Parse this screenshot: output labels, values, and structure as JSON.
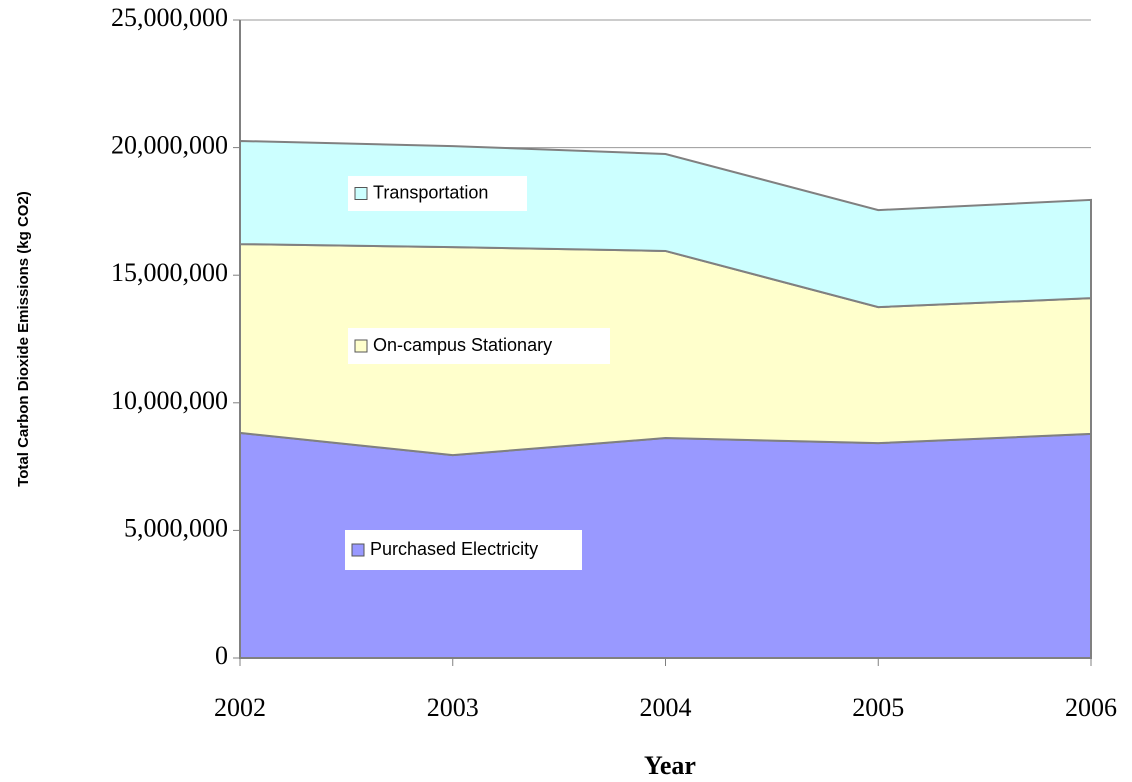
{
  "chart_data": {
    "type": "area",
    "stacked": true,
    "x_label": "Year",
    "y_label": "Total Carbon Dioxide Emissions (kg CO2)",
    "x": [
      2002,
      2003,
      2004,
      2005,
      2006
    ],
    "xlim": [
      2002,
      2006
    ],
    "xticks": [
      2002,
      2003,
      2004,
      2005,
      2006
    ],
    "ylim": [
      0,
      25000000
    ],
    "yticks": [
      0,
      {
        "value": 5000000,
        "label": "5,000,000"
      },
      {
        "value": 10000000,
        "label": "10,000,000"
      },
      {
        "value": 15000000,
        "label": "15,000,000"
      },
      {
        "value": 20000000,
        "label": "20,000,000"
      },
      {
        "value": 25000000,
        "label": "25,000,000"
      }
    ],
    "grid": true,
    "series": [
      {
        "name": "Purchased Electricity",
        "color": "#9999ff",
        "values": [
          8820000,
          7950000,
          8620000,
          8420000,
          8780000
        ]
      },
      {
        "name": "On-campus Stationary",
        "color": "#ffffcc",
        "values": [
          7400000,
          8150000,
          7330000,
          5330000,
          5320000
        ]
      },
      {
        "name": "Transportation",
        "color": "#ccffff",
        "values": [
          4040000,
          3960000,
          3800000,
          3800000,
          3850000
        ]
      }
    ]
  }
}
